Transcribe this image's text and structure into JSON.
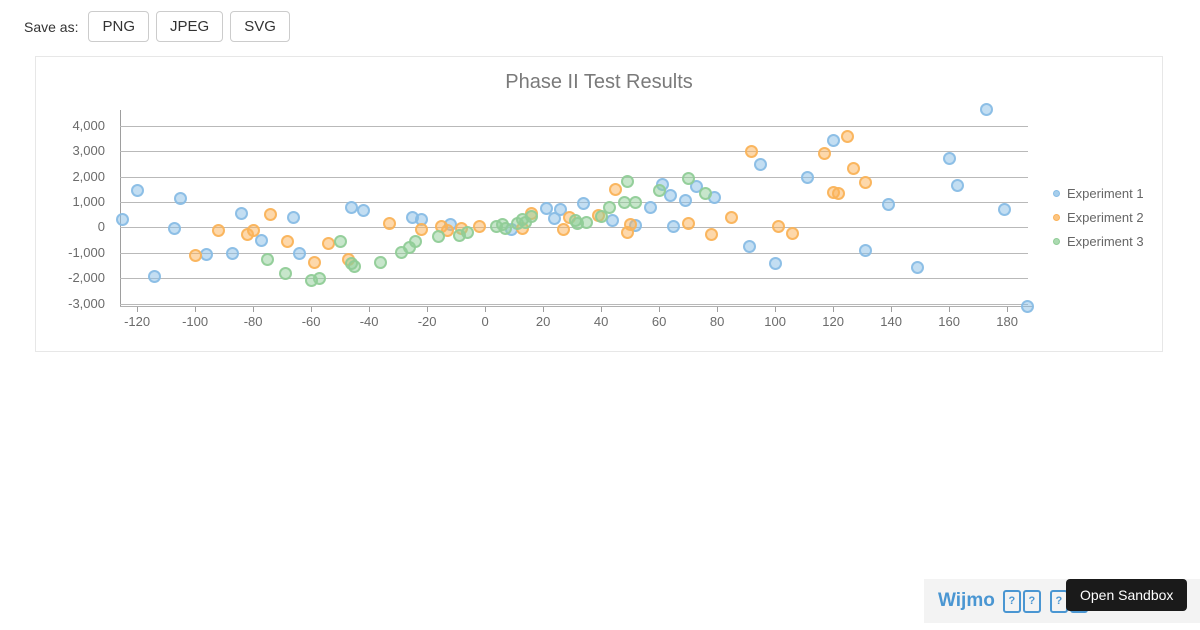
{
  "toolbar": {
    "label": "Save as:",
    "buttons": [
      "PNG",
      "JPEG",
      "SVG"
    ]
  },
  "chart_data": {
    "type": "scatter",
    "title": "Phase II Test Results",
    "legend_position": "right",
    "grid": "horizontal-only",
    "xlim": [
      -125.9,
      187.2
    ],
    "ylim": [
      -3059,
      4618
    ],
    "x_ticks": [
      -120,
      -100,
      -80,
      -60,
      -40,
      -20,
      0,
      20,
      40,
      60,
      80,
      100,
      120,
      140,
      160,
      180
    ],
    "y_ticks": [
      4000,
      3000,
      2000,
      1000,
      0,
      -1000,
      -2000,
      -3000
    ],
    "y_tick_labels": [
      "4,000",
      "3,000",
      "2,000",
      "1,000",
      "0",
      "-1,000",
      "-2,000",
      "-3,000"
    ],
    "series": [
      {
        "name": "Experiment 1",
        "color": "#88bde6",
        "points": [
          [
            -125,
            290
          ],
          [
            -120,
            1470
          ],
          [
            -114,
            -1950
          ],
          [
            -107,
            -30
          ],
          [
            -105,
            1150
          ],
          [
            -96,
            -1050
          ],
          [
            -87,
            -1010
          ],
          [
            -84,
            560
          ],
          [
            -77,
            -500
          ],
          [
            -66,
            400
          ],
          [
            -64,
            -1040
          ],
          [
            -46,
            800
          ],
          [
            -42,
            650
          ],
          [
            -25,
            400
          ],
          [
            -22,
            290
          ],
          [
            -12,
            100
          ],
          [
            9,
            -80
          ],
          [
            21,
            750
          ],
          [
            24,
            350
          ],
          [
            26,
            690
          ],
          [
            34,
            920
          ],
          [
            44,
            250
          ],
          [
            52,
            90
          ],
          [
            57,
            780
          ],
          [
            61,
            1700
          ],
          [
            64,
            1270
          ],
          [
            65,
            50
          ],
          [
            69,
            1050
          ],
          [
            73,
            1590
          ],
          [
            79,
            1190
          ],
          [
            91,
            -740
          ],
          [
            95,
            2490
          ],
          [
            100,
            -1410
          ],
          [
            111,
            1980
          ],
          [
            120,
            3400
          ],
          [
            131,
            -930
          ],
          [
            139,
            880
          ],
          [
            149,
            -1600
          ],
          [
            160,
            2730
          ],
          [
            163,
            1630
          ],
          [
            173,
            4650
          ],
          [
            179,
            720
          ],
          [
            187,
            -3130
          ]
        ]
      },
      {
        "name": "Experiment 2",
        "color": "#fbb258",
        "points": [
          [
            -100,
            -1090
          ],
          [
            -92,
            -110
          ],
          [
            -82,
            -270
          ],
          [
            -80,
            -120
          ],
          [
            -74,
            520
          ],
          [
            -68,
            -550
          ],
          [
            -59,
            -1400
          ],
          [
            -54,
            -650
          ],
          [
            -47,
            -1250
          ],
          [
            -33,
            150
          ],
          [
            -22,
            -100
          ],
          [
            -15,
            50
          ],
          [
            -13,
            -110
          ],
          [
            -8,
            -30
          ],
          [
            -2,
            30
          ],
          [
            13,
            -30
          ],
          [
            16,
            540
          ],
          [
            27,
            -80
          ],
          [
            29,
            400
          ],
          [
            39,
            480
          ],
          [
            45,
            1480
          ],
          [
            49,
            -220
          ],
          [
            50,
            120
          ],
          [
            70,
            160
          ],
          [
            78,
            -270
          ],
          [
            85,
            390
          ],
          [
            92,
            3000
          ],
          [
            101,
            50
          ],
          [
            106,
            -260
          ],
          [
            117,
            2890
          ],
          [
            120,
            1390
          ],
          [
            122,
            1330
          ],
          [
            125,
            3590
          ],
          [
            127,
            2300
          ],
          [
            131,
            1760
          ]
        ]
      },
      {
        "name": "Experiment 3",
        "color": "#90cd97",
        "points": [
          [
            -75,
            -1250
          ],
          [
            -69,
            -1800
          ],
          [
            -60,
            -2100
          ],
          [
            -57,
            -2010
          ],
          [
            -50,
            -570
          ],
          [
            -46,
            -1410
          ],
          [
            -45,
            -1550
          ],
          [
            -36,
            -1400
          ],
          [
            -29,
            -1000
          ],
          [
            -26,
            -780
          ],
          [
            -24,
            -540
          ],
          [
            -16,
            -370
          ],
          [
            -9,
            -330
          ],
          [
            -6,
            -220
          ],
          [
            4,
            20
          ],
          [
            6,
            130
          ],
          [
            7,
            -60
          ],
          [
            11,
            170
          ],
          [
            13,
            290
          ],
          [
            14,
            210
          ],
          [
            16,
            420
          ],
          [
            31,
            250
          ],
          [
            32,
            170
          ],
          [
            35,
            210
          ],
          [
            40,
            440
          ],
          [
            43,
            800
          ],
          [
            48,
            960
          ],
          [
            49,
            1790
          ],
          [
            52,
            960
          ],
          [
            60,
            1470
          ],
          [
            70,
            1940
          ],
          [
            76,
            1350
          ]
        ]
      }
    ]
  },
  "footer": {
    "brand": "Wijmo",
    "tofu_groups": [
      "??",
      "??"
    ],
    "suffix": ")",
    "tooltip": "Open Sandbox",
    "brand_color": "#4a96d2",
    "tooltip_bg": "#1a1a1a",
    "bar_bg": "#f3f3f3"
  }
}
